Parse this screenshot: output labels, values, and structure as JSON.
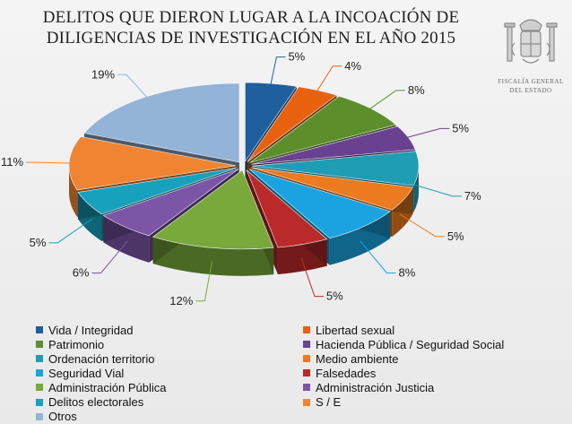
{
  "header": {
    "title_line1": "DELITOS QUE DIERON LUGAR A LA INCOACIÓN DE",
    "title_line2": "DILIGENCIAS DE INVESTIGACIÓN EN EL AÑO 2015"
  },
  "logo": {
    "text_line1": "FISCALÍA GENERAL",
    "text_line2": "DEL ESTADO"
  },
  "chart_data": {
    "type": "pie",
    "title": "DELITOS QUE DIERON LUGAR A LA INCOACIÓN DE DILIGENCIAS DE INVESTIGACIÓN EN EL AÑO 2015",
    "legend_position": "bottom",
    "slices": [
      {
        "label": "Vida / Integridad",
        "value": 5,
        "value_label": "5%",
        "color": "#1f5f9e"
      },
      {
        "label": "Libertad sexual",
        "value": 4,
        "value_label": "4%",
        "color": "#e8610f"
      },
      {
        "label": "Patrimonio",
        "value": 8,
        "value_label": "8%",
        "color": "#5d8e2c"
      },
      {
        "label": "Hacienda Pública / Seguridad Social",
        "value": 5,
        "value_label": "5%",
        "color": "#6a4190"
      },
      {
        "label": "Ordenación territorio",
        "value": 7,
        "value_label": "7%",
        "color": "#1f9db4"
      },
      {
        "label": "Medio ambiente",
        "value": 5,
        "value_label": "5%",
        "color": "#ec7a1e"
      },
      {
        "label": "Seguridad Vial",
        "value": 8,
        "value_label": "8%",
        "color": "#1aa3e0"
      },
      {
        "label": "Falsedades",
        "value": 5,
        "value_label": "5%",
        "color": "#bb2a2a"
      },
      {
        "label": "Administración Pública",
        "value": 12,
        "value_label": "12%",
        "color": "#79a93a"
      },
      {
        "label": "Administración Justicia",
        "value": 6,
        "value_label": "6%",
        "color": "#7c55a6"
      },
      {
        "label": "Delitos electorales",
        "value": 5,
        "value_label": "5%",
        "color": "#18a1bd"
      },
      {
        "label": "S / E",
        "value": 11,
        "value_label": "11%",
        "color": "#ef8533"
      },
      {
        "label": "Otros",
        "value": 19,
        "value_label": "19%",
        "color": "#94b3d8"
      }
    ]
  }
}
